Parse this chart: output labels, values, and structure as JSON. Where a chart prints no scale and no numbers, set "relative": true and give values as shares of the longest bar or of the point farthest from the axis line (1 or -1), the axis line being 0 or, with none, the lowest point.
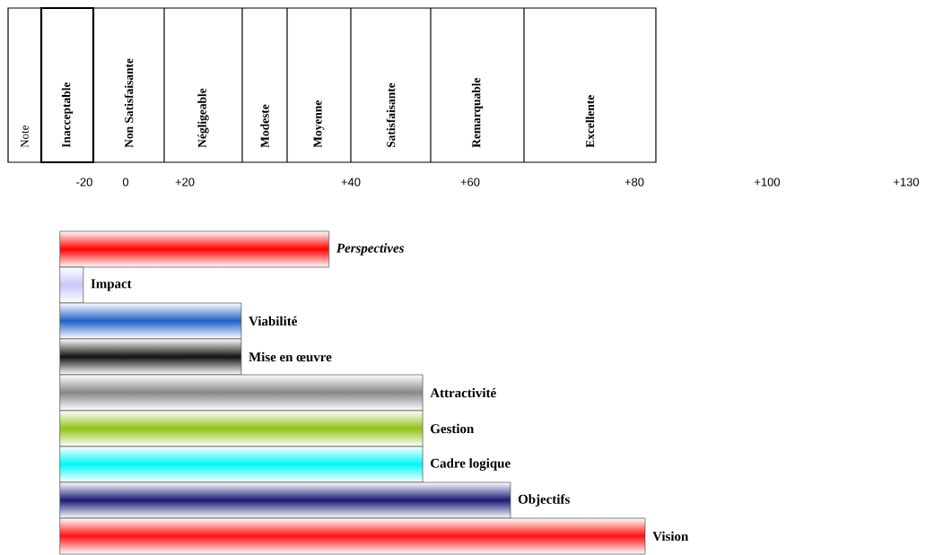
{
  "chart_data": [
    {
      "type": "other",
      "categories": [
        "Note",
        "Inacceptable",
        "Non Satisfaisante",
        "Négligeable",
        "Modeste",
        "Moyenne",
        "Satisfaisante",
        "Remarquable",
        "Excellente"
      ],
      "annotations": [
        "-20",
        "0",
        "+20",
        "+40",
        "+60",
        "+80",
        "+100",
        "+130"
      ]
    },
    {
      "type": "bar",
      "orientation": "horizontal",
      "relative": true,
      "categories": [
        "*Perspectives*",
        "Impact",
        "Viabilité",
        "Mise en œuvre",
        "Attractivité",
        "Gestion",
        "Cadre logique",
        "Objectifs",
        "Vision"
      ],
      "values": [
        0.46,
        0.04,
        0.31,
        0.31,
        0.62,
        0.62,
        0.62,
        0.77,
        1
      ],
      "colors": [
        "#ff0000",
        "#c8c8f8",
        "#2060c8",
        "#101010",
        "#888888",
        "#90c418",
        "#00f8f8",
        "#1a1a78",
        "#ff1010"
      ]
    }
  ]
}
